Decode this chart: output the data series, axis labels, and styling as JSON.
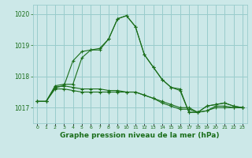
{
  "background_color": "#cce8e8",
  "grid_color": "#99cccc",
  "line_color": "#1a6e1a",
  "marker_color": "#1a6e1a",
  "xlabel": "Graphe pression niveau de la mer (hPa)",
  "xlim": [
    -0.5,
    23.5
  ],
  "ylim": [
    1016.5,
    1020.3
  ],
  "yticks": [
    1017,
    1018,
    1019,
    1020
  ],
  "xticks": [
    0,
    1,
    2,
    3,
    4,
    5,
    6,
    7,
    8,
    9,
    10,
    11,
    12,
    13,
    14,
    15,
    16,
    17,
    18,
    19,
    20,
    21,
    22,
    23
  ],
  "series": [
    {
      "x": [
        0,
        1,
        2,
        3,
        4,
        5,
        6,
        7,
        8,
        9,
        10,
        11,
        12,
        13,
        14,
        15,
        16,
        17,
        18,
        19,
        20,
        21,
        22,
        23
      ],
      "y": [
        1017.2,
        1017.2,
        1017.6,
        1017.6,
        1017.55,
        1017.5,
        1017.5,
        1017.5,
        1017.5,
        1017.5,
        1017.5,
        1017.5,
        1017.4,
        1017.3,
        1017.2,
        1017.1,
        1017.0,
        1017.0,
        1016.85,
        1016.9,
        1017.0,
        1017.0,
        1017.0,
        1017.0
      ]
    },
    {
      "x": [
        0,
        1,
        2,
        3,
        4,
        5,
        6,
        7,
        8,
        9,
        10,
        11,
        12,
        13,
        14,
        15,
        16,
        17,
        18,
        19,
        20,
        21,
        22,
        23
      ],
      "y": [
        1017.2,
        1017.2,
        1017.65,
        1017.7,
        1017.65,
        1017.6,
        1017.6,
        1017.6,
        1017.55,
        1017.55,
        1017.5,
        1017.5,
        1017.4,
        1017.3,
        1017.15,
        1017.05,
        1016.95,
        1016.95,
        1016.85,
        1016.9,
        1017.05,
        1017.05,
        1017.0,
        1017.0
      ]
    },
    {
      "x": [
        0,
        1,
        2,
        3,
        4,
        5,
        6,
        7,
        8,
        9,
        10,
        11,
        12,
        13,
        14,
        15,
        16,
        17,
        18,
        19,
        20,
        21,
        22,
        23
      ],
      "y": [
        1017.2,
        1017.2,
        1017.7,
        1017.75,
        1017.75,
        1018.6,
        1018.85,
        1018.9,
        1019.2,
        1019.85,
        1019.95,
        1019.6,
        1018.7,
        1018.3,
        1017.9,
        1017.65,
        1017.6,
        1016.85,
        1016.85,
        1017.05,
        1017.1,
        1017.15,
        1017.05,
        1017.0
      ]
    },
    {
      "x": [
        0,
        1,
        2,
        3,
        4,
        5,
        6,
        7,
        8,
        9,
        10,
        11,
        12,
        13,
        14,
        15,
        16,
        17,
        18,
        19,
        20,
        21,
        22,
        23
      ],
      "y": [
        1017.2,
        1017.2,
        1017.65,
        1017.7,
        1018.5,
        1018.8,
        1018.85,
        1018.85,
        1019.2,
        1019.85,
        1019.95,
        1019.6,
        1018.7,
        1018.3,
        1017.9,
        1017.65,
        1017.55,
        1016.85,
        1016.85,
        1017.05,
        1017.1,
        1017.15,
        1017.05,
        1017.0
      ]
    }
  ]
}
